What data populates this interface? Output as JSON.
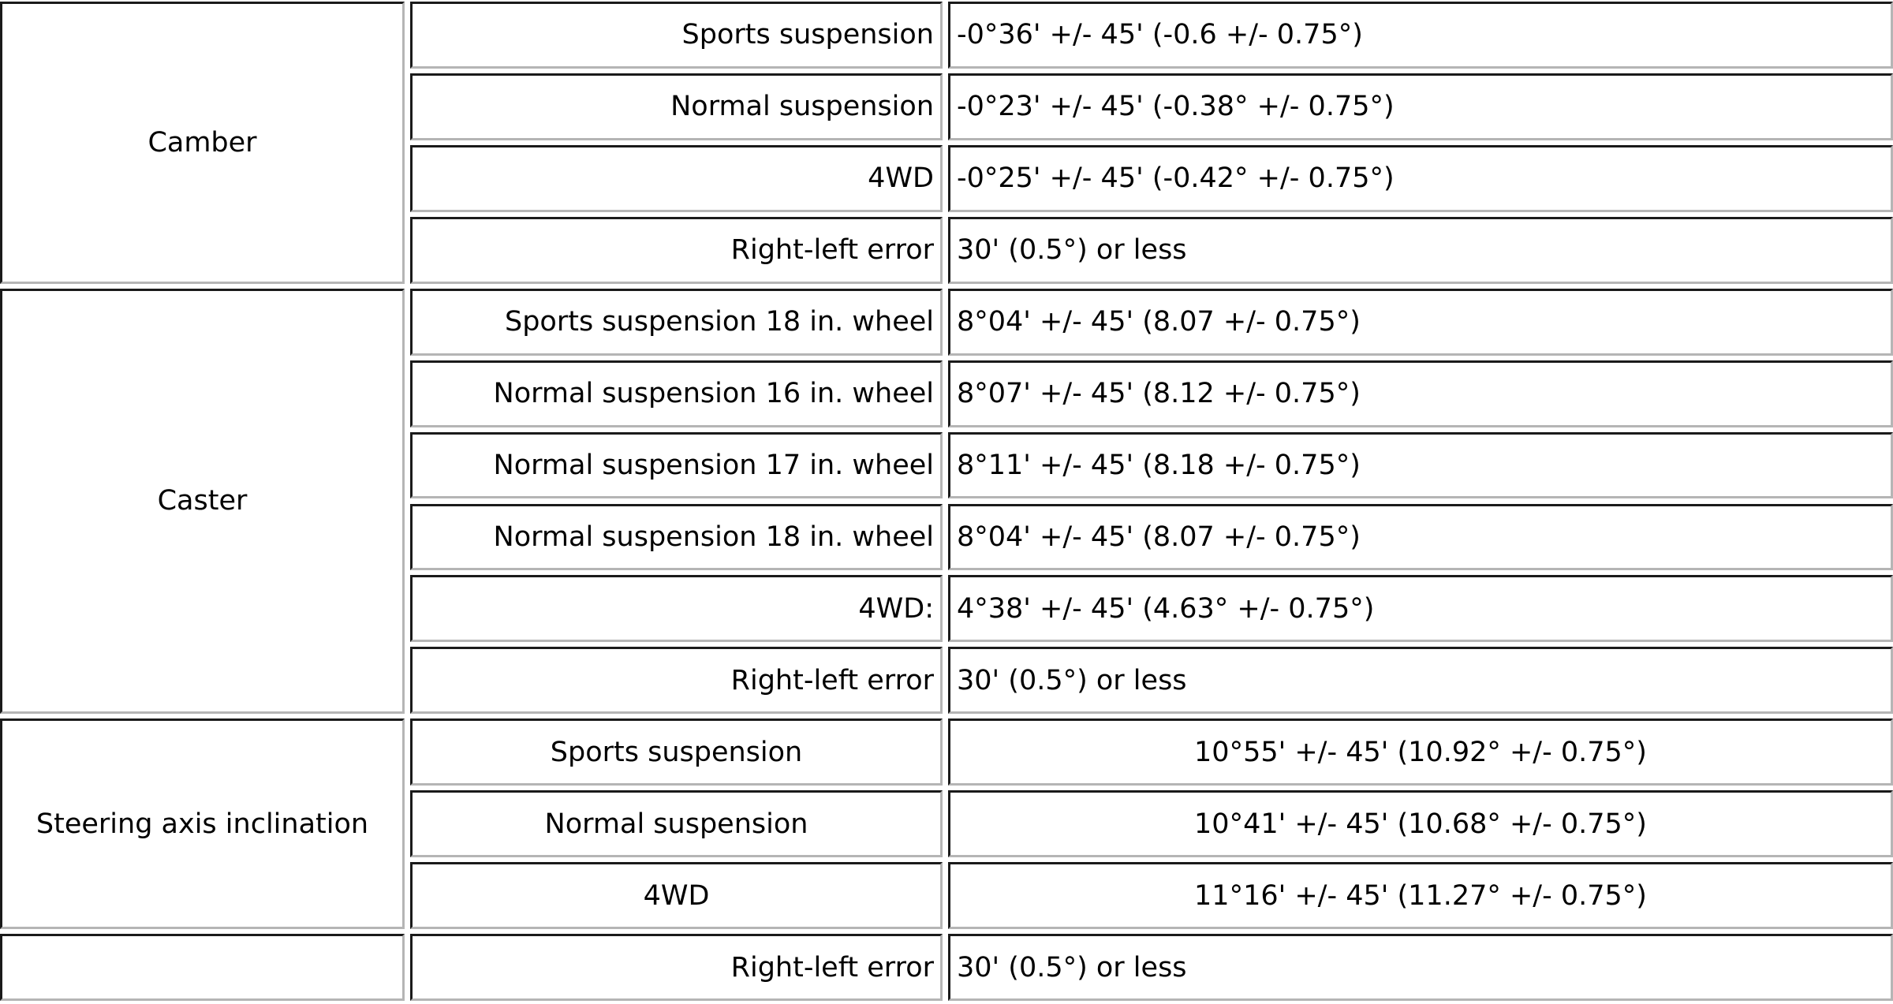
{
  "table": {
    "groups": [
      {
        "label": "Camber",
        "rows": [
          [
            "Sports suspension",
            "-0°36' +/- 45' (-0.6 +/- 0.75°)"
          ],
          [
            "Normal suspension",
            "-0°23' +/- 45' (-0.38° +/- 0.75°)"
          ],
          [
            "4WD",
            "-0°25' +/- 45' (-0.42° +/- 0.75°)"
          ],
          [
            "Right-left error",
            "30' (0.5°) or less"
          ]
        ]
      },
      {
        "label": "Caster",
        "rows": [
          [
            "Sports suspension 18 in. wheel",
            "8°04' +/- 45' (8.07 +/- 0.75°)"
          ],
          [
            "Normal suspension 16 in. wheel",
            "8°07' +/- 45' (8.12 +/- 0.75°)"
          ],
          [
            "Normal suspension 17 in. wheel",
            "8°11' +/- 45' (8.18 +/- 0.75°)"
          ],
          [
            "Normal suspension 18 in. wheel",
            "8°04' +/- 45' (8.07 +/- 0.75°)"
          ],
          [
            "4WD:",
            "4°38' +/- 45' (4.63° +/- 0.75°)"
          ],
          [
            "Right-left error",
            "30' (0.5°) or less"
          ]
        ]
      },
      {
        "label": "Steering axis inclination",
        "rows": [
          [
            "Sports suspension",
            "10°55' +/- 45' (10.92° +/- 0.75°)"
          ],
          [
            "Normal suspension",
            "10°41' +/- 45' (10.68° +/- 0.75°)"
          ],
          [
            "4WD",
            "11°16' +/- 45' (11.27° +/- 0.75°)"
          ]
        ]
      },
      {
        "rows": [
          [
            "Right-left error",
            "30' (0.5°) or less"
          ]
        ]
      }
    ]
  }
}
